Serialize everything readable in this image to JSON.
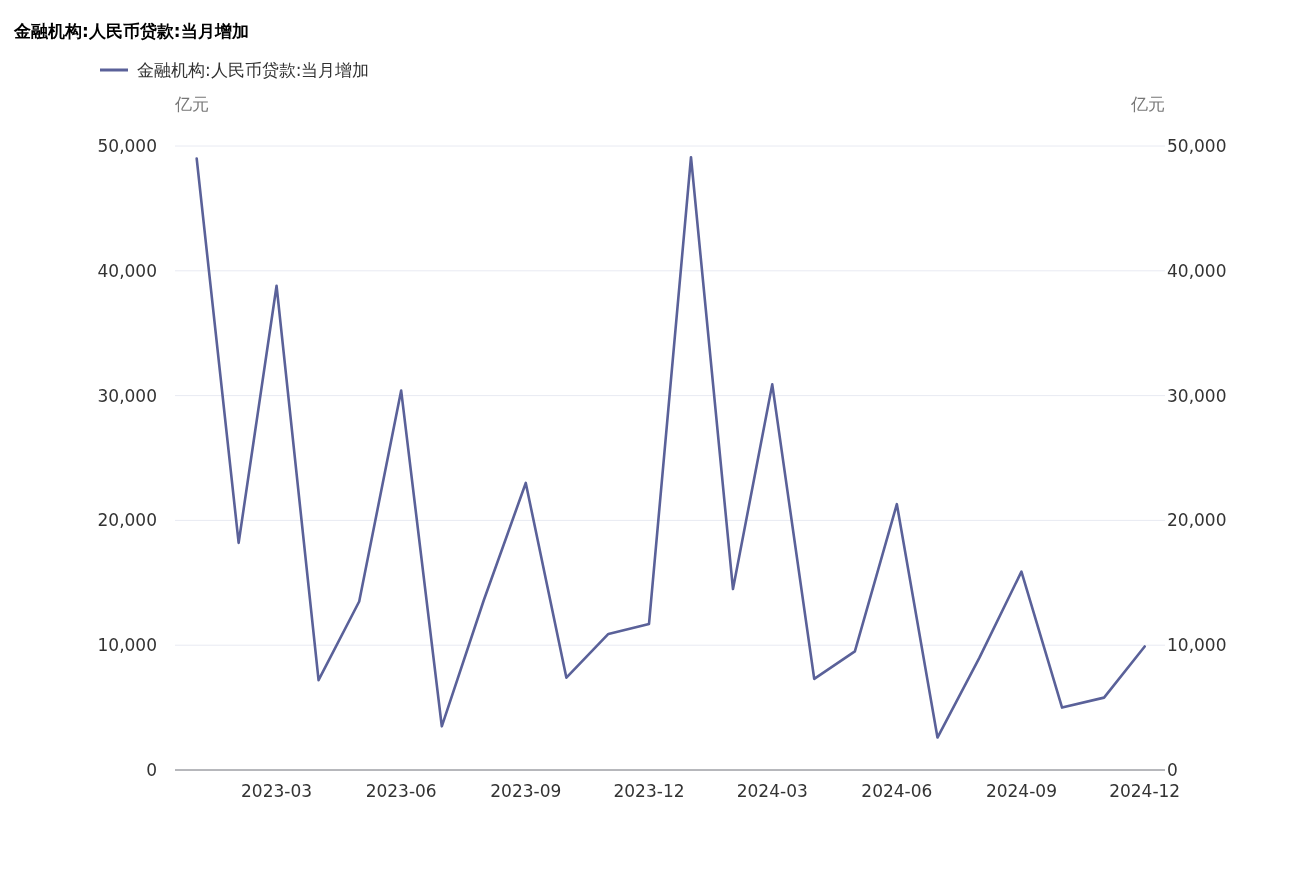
{
  "chart_data": {
    "type": "line",
    "title": "金融机构:人民币贷款:当月增加",
    "ylabel": "亿元",
    "y2label": "亿元",
    "x": [
      "2023-01",
      "2023-02",
      "2023-03",
      "2023-04",
      "2023-05",
      "2023-06",
      "2023-07",
      "2023-08",
      "2023-09",
      "2023-10",
      "2023-11",
      "2023-12",
      "2024-01",
      "2024-02",
      "2024-03",
      "2024-04",
      "2024-05",
      "2024-06",
      "2024-07",
      "2024-08",
      "2024-09",
      "2024-10",
      "2024-11",
      "2024-12"
    ],
    "series": [
      {
        "name": "金融机构:人民币贷款:当月增加",
        "color": "#5a6199",
        "values": [
          49000,
          18200,
          38800,
          7200,
          13500,
          30400,
          3500,
          13600,
          23000,
          7400,
          10900,
          11700,
          49100,
          14500,
          30900,
          7300,
          9500,
          21300,
          2600,
          9000,
          15900,
          5000,
          5800,
          9900
        ]
      }
    ],
    "xlim": [
      "2022-12-16",
      "2024-12-16"
    ],
    "xticks": [
      {
        "value": "2023-03",
        "label": "2023-03"
      },
      {
        "value": "2023-06",
        "label": "2023-06"
      },
      {
        "value": "2023-09",
        "label": "2023-09"
      },
      {
        "value": "2023-12",
        "label": "2023-12"
      },
      {
        "value": "2024-03",
        "label": "2024-03"
      },
      {
        "value": "2024-06",
        "label": "2024-06"
      },
      {
        "value": "2024-09",
        "label": "2024-09"
      },
      {
        "value": "2024-12",
        "label": "2024-12"
      }
    ],
    "ylim": [
      0,
      50000
    ],
    "yticks": [
      {
        "value": 0,
        "label": "0"
      },
      {
        "value": 10000,
        "label": "10,000"
      },
      {
        "value": 20000,
        "label": "20,000"
      },
      {
        "value": 30000,
        "label": "30,000"
      },
      {
        "value": 40000,
        "label": "40,000"
      },
      {
        "value": 50000,
        "label": "50,000"
      }
    ],
    "y2lim": [
      0,
      50000
    ],
    "y2ticks": [
      {
        "value": 0,
        "label": "0"
      },
      {
        "value": 10000,
        "label": "10,000"
      },
      {
        "value": 20000,
        "label": "20,000"
      },
      {
        "value": 30000,
        "label": "30,000"
      },
      {
        "value": 40000,
        "label": "40,000"
      },
      {
        "value": 50000,
        "label": "50,000"
      }
    ],
    "grid": "y",
    "legend": "top left",
    "line_style": "solid"
  }
}
